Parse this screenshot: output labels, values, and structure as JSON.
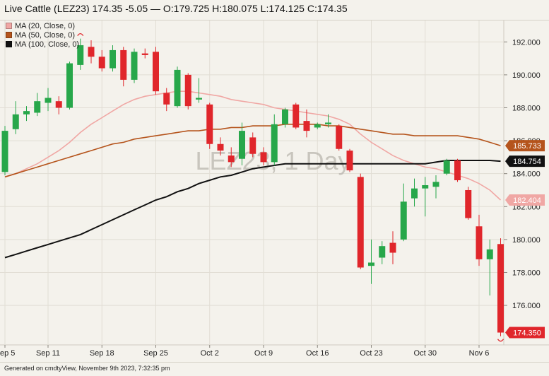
{
  "header": {
    "title": "Live Cattle (LEZ23) 174.35 -5.05 — O:179.725 H:180.075 L:174.125 C:174.35"
  },
  "footer": {
    "text": "Generated on cmdtyView, November 9th 2023, 7:32:35 pm"
  },
  "colors": {
    "up": "#27a74a",
    "down": "#e0262b",
    "ma20": "#f0a7a4",
    "ma50": "#b5541c",
    "ma100": "#111111",
    "background": "#f4f2ec",
    "grid": "#e1ddd4"
  },
  "chart_data": {
    "type": "candlestick",
    "watermark": "LEZ23, 1 Day",
    "y_axis": {
      "min": 173.6,
      "max": 193.3,
      "ticks": [
        176,
        178,
        180,
        182,
        184,
        186,
        188,
        190,
        192
      ],
      "tick_labels": [
        "176.000",
        "178.000",
        "180.000",
        "182.000",
        "184.000",
        "186.000",
        "188.000",
        "190.000",
        "192.000"
      ]
    },
    "x_labels": [
      {
        "label": "Sep 5",
        "index": 0
      },
      {
        "label": "Sep 11",
        "index": 4
      },
      {
        "label": "Sep 18",
        "index": 9
      },
      {
        "label": "Sep 25",
        "index": 14
      },
      {
        "label": "Oct 2",
        "index": 19
      },
      {
        "label": "Oct 9",
        "index": 24
      },
      {
        "label": "Oct 16",
        "index": 29
      },
      {
        "label": "Oct 23",
        "index": 34
      },
      {
        "label": "Oct 30",
        "index": 39
      },
      {
        "label": "Nov 6",
        "index": 44
      }
    ],
    "candles": [
      {
        "o": 184.1,
        "h": 186.9,
        "l": 183.9,
        "c": 186.6
      },
      {
        "o": 186.7,
        "h": 188.4,
        "l": 186.4,
        "c": 187.6
      },
      {
        "o": 187.6,
        "h": 188.1,
        "l": 187.2,
        "c": 187.8
      },
      {
        "o": 187.7,
        "h": 188.9,
        "l": 187.5,
        "c": 188.4
      },
      {
        "o": 188.3,
        "h": 189.2,
        "l": 187.8,
        "c": 188.6
      },
      {
        "o": 188.4,
        "h": 188.7,
        "l": 187.6,
        "c": 188.0
      },
      {
        "o": 188.0,
        "h": 190.8,
        "l": 187.9,
        "c": 190.7
      },
      {
        "o": 190.6,
        "h": 192.2,
        "l": 190.3,
        "c": 191.8
      },
      {
        "o": 191.7,
        "h": 192.1,
        "l": 190.7,
        "c": 191.1
      },
      {
        "o": 191.1,
        "h": 191.5,
        "l": 190.2,
        "c": 190.4
      },
      {
        "o": 190.4,
        "h": 191.8,
        "l": 190.2,
        "c": 191.5
      },
      {
        "o": 191.5,
        "h": 191.7,
        "l": 189.3,
        "c": 189.7
      },
      {
        "o": 189.7,
        "h": 191.6,
        "l": 189.5,
        "c": 191.4
      },
      {
        "o": 191.3,
        "h": 191.6,
        "l": 191.0,
        "c": 191.2
      },
      {
        "o": 191.4,
        "h": 191.7,
        "l": 188.8,
        "c": 189.0
      },
      {
        "o": 188.9,
        "h": 189.2,
        "l": 187.8,
        "c": 188.2
      },
      {
        "o": 188.1,
        "h": 190.5,
        "l": 188.0,
        "c": 190.3
      },
      {
        "o": 190.0,
        "h": 190.1,
        "l": 187.9,
        "c": 188.1
      },
      {
        "o": 188.5,
        "h": 189.8,
        "l": 188.3,
        "c": 188.6
      },
      {
        "o": 188.2,
        "h": 188.3,
        "l": 185.5,
        "c": 185.8
      },
      {
        "o": 185.8,
        "h": 186.2,
        "l": 185.1,
        "c": 185.4
      },
      {
        "o": 185.1,
        "h": 185.6,
        "l": 184.4,
        "c": 184.7
      },
      {
        "o": 184.9,
        "h": 187.1,
        "l": 184.5,
        "c": 186.6
      },
      {
        "o": 186.2,
        "h": 186.5,
        "l": 185.0,
        "c": 185.2
      },
      {
        "o": 185.3,
        "h": 185.6,
        "l": 184.5,
        "c": 184.7
      },
      {
        "o": 184.7,
        "h": 187.6,
        "l": 184.5,
        "c": 187.0
      },
      {
        "o": 187.0,
        "h": 188.0,
        "l": 186.8,
        "c": 187.9
      },
      {
        "o": 188.2,
        "h": 188.3,
        "l": 186.7,
        "c": 186.8
      },
      {
        "o": 187.2,
        "h": 187.9,
        "l": 186.2,
        "c": 186.6
      },
      {
        "o": 186.8,
        "h": 187.1,
        "l": 186.7,
        "c": 187.0
      },
      {
        "o": 187.0,
        "h": 187.6,
        "l": 186.8,
        "c": 187.1
      },
      {
        "o": 186.9,
        "h": 187.0,
        "l": 185.4,
        "c": 185.5
      },
      {
        "o": 185.4,
        "h": 185.5,
        "l": 184.1,
        "c": 184.2
      },
      {
        "o": 183.8,
        "h": 184.0,
        "l": 178.2,
        "c": 178.3
      },
      {
        "o": 178.4,
        "h": 180.0,
        "l": 177.3,
        "c": 178.6
      },
      {
        "o": 178.9,
        "h": 179.9,
        "l": 178.5,
        "c": 179.6
      },
      {
        "o": 179.8,
        "h": 180.5,
        "l": 178.5,
        "c": 179.2
      },
      {
        "o": 180.0,
        "h": 183.4,
        "l": 179.9,
        "c": 182.3
      },
      {
        "o": 182.5,
        "h": 183.7,
        "l": 182.0,
        "c": 183.1
      },
      {
        "o": 183.1,
        "h": 183.8,
        "l": 181.4,
        "c": 183.3
      },
      {
        "o": 183.2,
        "h": 183.9,
        "l": 182.5,
        "c": 183.5
      },
      {
        "o": 184.0,
        "h": 184.9,
        "l": 183.9,
        "c": 184.8
      },
      {
        "o": 184.8,
        "h": 184.9,
        "l": 183.5,
        "c": 183.6
      },
      {
        "o": 183.0,
        "h": 183.2,
        "l": 181.2,
        "c": 181.3
      },
      {
        "o": 180.8,
        "h": 181.5,
        "l": 178.4,
        "c": 178.8
      },
      {
        "o": 178.8,
        "h": 180.0,
        "l": 176.6,
        "c": 179.4
      },
      {
        "o": 179.725,
        "h": 180.075,
        "l": 174.125,
        "c": 174.35
      }
    ],
    "series": [
      {
        "name": "MA (20, Close, 0)",
        "color": "#f0a7a4",
        "current_label": "182.404",
        "values": [
          183.8,
          184.0,
          184.3,
          184.6,
          185.0,
          185.4,
          185.9,
          186.5,
          187.0,
          187.4,
          187.8,
          188.2,
          188.5,
          188.7,
          188.8,
          188.9,
          189.0,
          189.0,
          188.9,
          188.8,
          188.7,
          188.5,
          188.4,
          188.3,
          188.2,
          188.0,
          187.9,
          187.8,
          187.7,
          187.6,
          187.5,
          187.3,
          187.0,
          186.4,
          185.9,
          185.5,
          185.1,
          184.8,
          184.6,
          184.4,
          184.3,
          184.1,
          183.9,
          183.7,
          183.4,
          183.0,
          182.4
        ]
      },
      {
        "name": "MA (50, Close, 0)",
        "color": "#b5541c",
        "current_label": "185.733",
        "values": [
          183.8,
          184.0,
          184.2,
          184.4,
          184.6,
          184.8,
          185.0,
          185.2,
          185.4,
          185.6,
          185.8,
          185.9,
          186.1,
          186.2,
          186.3,
          186.4,
          186.5,
          186.6,
          186.6,
          186.7,
          186.7,
          186.8,
          186.8,
          186.9,
          186.9,
          186.9,
          187.0,
          187.0,
          187.0,
          187.0,
          186.9,
          186.9,
          186.8,
          186.7,
          186.6,
          186.5,
          186.4,
          186.4,
          186.3,
          186.3,
          186.3,
          186.3,
          186.3,
          186.2,
          186.1,
          185.9,
          185.7
        ]
      },
      {
        "name": "MA (100, Close, 0)",
        "color": "#111111",
        "current_label": "184.754",
        "values": [
          178.9,
          179.1,
          179.3,
          179.5,
          179.7,
          179.9,
          180.1,
          180.3,
          180.6,
          180.9,
          181.2,
          181.5,
          181.8,
          182.1,
          182.4,
          182.6,
          182.9,
          183.1,
          183.4,
          183.6,
          183.8,
          183.9,
          184.1,
          184.3,
          184.4,
          184.5,
          184.6,
          184.6,
          184.6,
          184.6,
          184.6,
          184.6,
          184.6,
          184.6,
          184.6,
          184.6,
          184.6,
          184.6,
          184.6,
          184.6,
          184.7,
          184.8,
          184.8,
          184.8,
          184.8,
          184.8,
          184.754
        ]
      }
    ],
    "last_price_label": "174.350"
  }
}
